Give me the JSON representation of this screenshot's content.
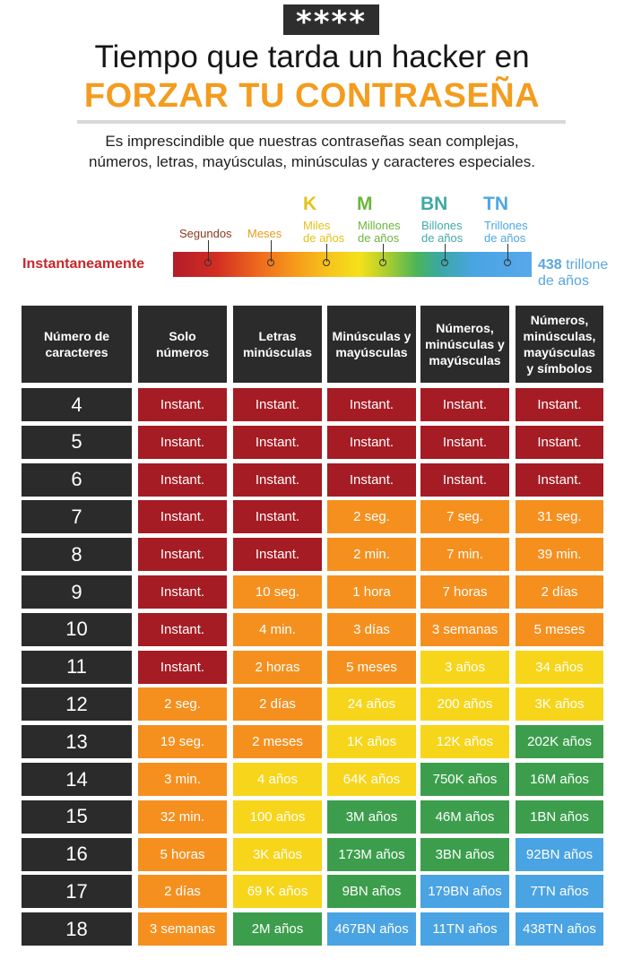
{
  "header": {
    "badge": "****",
    "title_line1": "Tiempo que tarda un hacker en",
    "title_line2": "FORZAR TU CONTRASEÑA",
    "subtitle_line1": "Es imprescindible que nuestras  contraseñas sean complejas,",
    "subtitle_line2": "números, letras, mayúsculas, minúsculas y caracteres especiales."
  },
  "legend": {
    "start_label": "Instantaneamente",
    "segundos": "Segundos",
    "meses": "Meses",
    "k": {
      "abbr": "K",
      "line1": "Miles",
      "line2": "de años",
      "color": "#e3c21a"
    },
    "m": {
      "abbr": "M",
      "line1": "Millones",
      "line2": "de años",
      "color": "#6bb63d"
    },
    "bn": {
      "abbr": "BN",
      "line1": "Billones",
      "line2": "de años",
      "color": "#3fa9a4"
    },
    "tn": {
      "abbr": "TN",
      "line1": "Trillones",
      "line2": "de años",
      "color": "#4fa6e2"
    },
    "end_bold": "438",
    "end_rest": " trillone",
    "end_line2": "de años",
    "colors": {
      "segundos": "#8a3a1c",
      "meses": "#e59c1c",
      "instant": "#c7262a",
      "end": "#5aa6dd"
    }
  },
  "table": {
    "headers": [
      [
        "Número de",
        "caracteres"
      ],
      [
        "Solo",
        "números"
      ],
      [
        "Letras",
        "minúsculas"
      ],
      [
        "Minúsculas y",
        "mayúsculas"
      ],
      [
        "Números,",
        "minúsculas y",
        "mayúsculas"
      ],
      [
        "Números,",
        "minúsculas,",
        "mayúsculas",
        "y símbolos"
      ]
    ],
    "rows": [
      {
        "n": "4",
        "cells": [
          [
            "Instant.",
            "red"
          ],
          [
            "Instant.",
            "red"
          ],
          [
            "Instant.",
            "red"
          ],
          [
            "Instant.",
            "red"
          ],
          [
            "Instant.",
            "red"
          ]
        ]
      },
      {
        "n": "5",
        "cells": [
          [
            "Instant.",
            "red"
          ],
          [
            "Instant.",
            "red"
          ],
          [
            "Instant.",
            "red"
          ],
          [
            "Instant.",
            "red"
          ],
          [
            "Instant.",
            "red"
          ]
        ]
      },
      {
        "n": "6",
        "cells": [
          [
            "Instant.",
            "red"
          ],
          [
            "Instant.",
            "red"
          ],
          [
            "Instant.",
            "red"
          ],
          [
            "Instant.",
            "red"
          ],
          [
            "Instant.",
            "red"
          ]
        ]
      },
      {
        "n": "7",
        "cells": [
          [
            "Instant.",
            "red"
          ],
          [
            "Instant.",
            "red"
          ],
          [
            "2 seg.",
            "orange"
          ],
          [
            "7 seg.",
            "orange"
          ],
          [
            "31 seg.",
            "orange"
          ]
        ]
      },
      {
        "n": "8",
        "cells": [
          [
            "Instant.",
            "red"
          ],
          [
            "Instant.",
            "red"
          ],
          [
            "2 min.",
            "orange"
          ],
          [
            "7 min.",
            "orange"
          ],
          [
            "39 min.",
            "orange"
          ]
        ]
      },
      {
        "n": "9",
        "cells": [
          [
            "Instant.",
            "red"
          ],
          [
            "10 seg.",
            "orange"
          ],
          [
            "1 hora",
            "orange"
          ],
          [
            "7 horas",
            "orange"
          ],
          [
            "2 días",
            "orange"
          ]
        ]
      },
      {
        "n": "10",
        "cells": [
          [
            "Instant.",
            "red"
          ],
          [
            "4 min.",
            "orange"
          ],
          [
            "3 días",
            "orange"
          ],
          [
            "3 semanas",
            "orange"
          ],
          [
            "5 meses",
            "orange"
          ]
        ]
      },
      {
        "n": "11",
        "cells": [
          [
            "Instant.",
            "red"
          ],
          [
            "2 horas",
            "orange"
          ],
          [
            "5 meses",
            "orange"
          ],
          [
            "3 años",
            "yellow"
          ],
          [
            "34 años",
            "yellow"
          ]
        ]
      },
      {
        "n": "12",
        "cells": [
          [
            "2 seg.",
            "orange"
          ],
          [
            "2 días",
            "orange"
          ],
          [
            "24 años",
            "yellow"
          ],
          [
            "200 años",
            "yellow"
          ],
          [
            "3K años",
            "yellow"
          ]
        ]
      },
      {
        "n": "13",
        "cells": [
          [
            "19 seg.",
            "orange"
          ],
          [
            "2 meses",
            "orange"
          ],
          [
            "1K años",
            "yellow"
          ],
          [
            "12K años",
            "yellow"
          ],
          [
            "202K años",
            "green"
          ]
        ]
      },
      {
        "n": "14",
        "cells": [
          [
            "3 min.",
            "orange"
          ],
          [
            "4 años",
            "yellow"
          ],
          [
            "64K años",
            "yellow"
          ],
          [
            "750K años",
            "green"
          ],
          [
            "16M años",
            "green"
          ]
        ]
      },
      {
        "n": "15",
        "cells": [
          [
            "32 min.",
            "orange"
          ],
          [
            "100 años",
            "yellow"
          ],
          [
            "3M años",
            "green"
          ],
          [
            "46M años",
            "green"
          ],
          [
            "1BN años",
            "green"
          ]
        ]
      },
      {
        "n": "16",
        "cells": [
          [
            "5 horas",
            "orange"
          ],
          [
            "3K años",
            "yellow"
          ],
          [
            "173M años",
            "green"
          ],
          [
            "3BN años",
            "green"
          ],
          [
            "92BN años",
            "blue"
          ]
        ]
      },
      {
        "n": "17",
        "cells": [
          [
            "2 días",
            "orange"
          ],
          [
            "69 K años",
            "yellow"
          ],
          [
            "9BN años",
            "green"
          ],
          [
            "179BN años",
            "blue"
          ],
          [
            "7TN años",
            "blue"
          ]
        ]
      },
      {
        "n": "18",
        "cells": [
          [
            "3 semanas",
            "orange"
          ],
          [
            "2M años",
            "green"
          ],
          [
            "467BN años",
            "blue"
          ],
          [
            "11TN años",
            "blue"
          ],
          [
            "438TN años",
            "blue"
          ]
        ]
      }
    ]
  }
}
